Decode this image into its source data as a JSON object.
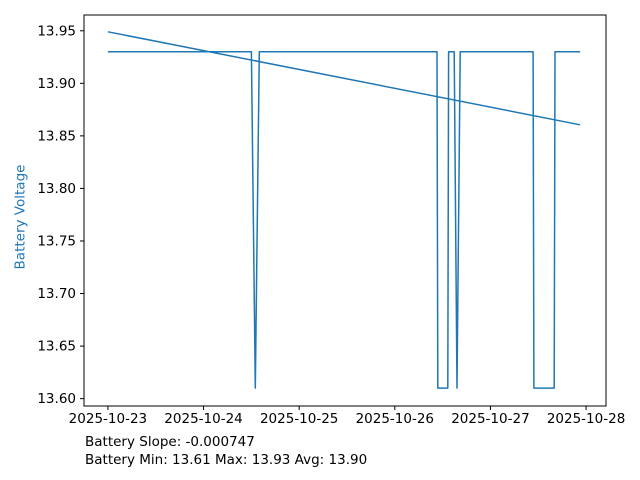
{
  "chart_data": {
    "type": "line",
    "title": "",
    "ylabel": "Battery Voltage",
    "xlabel": "",
    "x_unit": "hours since 2025-10-23 00:00",
    "xlim_hours": [
      -6,
      125
    ],
    "ylim": [
      13.593,
      13.965
    ],
    "grid": false,
    "legend": "none",
    "x_ticks_hours": [
      0,
      24,
      48,
      72,
      96,
      120
    ],
    "x_tick_labels": [
      "2025-10-23",
      "2025-10-24",
      "2025-10-25",
      "2025-10-26",
      "2025-10-27",
      "2025-10-28"
    ],
    "y_tick_values": [
      13.6,
      13.65,
      13.7,
      13.75,
      13.8,
      13.85,
      13.9,
      13.95
    ],
    "y_tick_labels": [
      "13.60",
      "13.65",
      "13.70",
      "13.75",
      "13.80",
      "13.85",
      "13.90",
      "13.95"
    ],
    "series": [
      {
        "name": "battery-voltage",
        "color": "#1f77b4",
        "points": [
          [
            0,
            13.93
          ],
          [
            36.0,
            13.93
          ],
          [
            37.0,
            13.61
          ],
          [
            38.0,
            13.93
          ],
          [
            82.6,
            13.93
          ],
          [
            82.8,
            13.61
          ],
          [
            85.3,
            13.61
          ],
          [
            85.5,
            13.93
          ],
          [
            86.9,
            13.93
          ],
          [
            87.6,
            13.61
          ],
          [
            88.4,
            13.93
          ],
          [
            106.7,
            13.93
          ],
          [
            106.9,
            13.61
          ],
          [
            112.0,
            13.61
          ],
          [
            112.2,
            13.93
          ],
          [
            118.5,
            13.93
          ]
        ]
      },
      {
        "name": "trend",
        "color": "#1f77b4",
        "points": [
          [
            0,
            13.949
          ],
          [
            118.5,
            13.8605
          ]
        ]
      }
    ],
    "annotations": {
      "slope": "Battery Slope: -0.000747",
      "stats": "Battery Min: 13.61 Max: 13.93 Avg: 13.90"
    },
    "stats": {
      "slope": -0.000747,
      "min": 13.61,
      "max": 13.93,
      "avg": 13.9
    },
    "colors": {
      "line": "#1f77b4",
      "ylabel": "#1f77b4",
      "tick_text": "#000000",
      "spine": "#000000"
    }
  }
}
